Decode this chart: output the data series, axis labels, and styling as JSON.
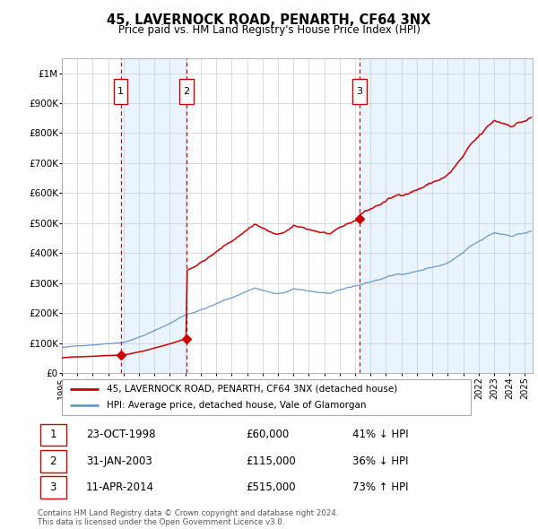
{
  "title": "45, LAVERNOCK ROAD, PENARTH, CF64 3NX",
  "subtitle": "Price paid vs. HM Land Registry's House Price Index (HPI)",
  "footer1": "Contains HM Land Registry data © Crown copyright and database right 2024.",
  "footer2": "This data is licensed under the Open Government Licence v3.0.",
  "legend_label_red": "45, LAVERNOCK ROAD, PENARTH, CF64 3NX (detached house)",
  "legend_label_blue": "HPI: Average price, detached house, Vale of Glamorgan",
  "sales": [
    {
      "label": "1",
      "date": "23-OCT-1998",
      "price": 60000,
      "pct": "41%",
      "dir": "↓",
      "x_year": 1998.81
    },
    {
      "label": "2",
      "date": "31-JAN-2003",
      "price": 115000,
      "pct": "36%",
      "dir": "↓",
      "x_year": 2003.08
    },
    {
      "label": "3",
      "date": "11-APR-2014",
      "price": 515000,
      "pct": "73%",
      "dir": "↑",
      "x_year": 2014.28
    }
  ],
  "red_line_color": "#cc0000",
  "blue_line_color": "#6699cc",
  "bg_shade_color": "#ddeeff",
  "dashed_line_color": "#cc0000",
  "grid_color": "#cccccc",
  "sale_marker_color": "#cc0000",
  "box_color": "#cc0000",
  "ylim": [
    0,
    1050000
  ],
  "xlim_start": 1995.0,
  "xlim_end": 2025.5,
  "yticks": [
    0,
    100000,
    200000,
    300000,
    400000,
    500000,
    600000,
    700000,
    800000,
    900000,
    1000000
  ],
  "xticks": [
    1995,
    1996,
    1997,
    1998,
    1999,
    2000,
    2001,
    2002,
    2003,
    2004,
    2005,
    2006,
    2007,
    2008,
    2009,
    2010,
    2011,
    2012,
    2013,
    2014,
    2015,
    2016,
    2017,
    2018,
    2019,
    2020,
    2021,
    2022,
    2023,
    2024,
    2025
  ]
}
